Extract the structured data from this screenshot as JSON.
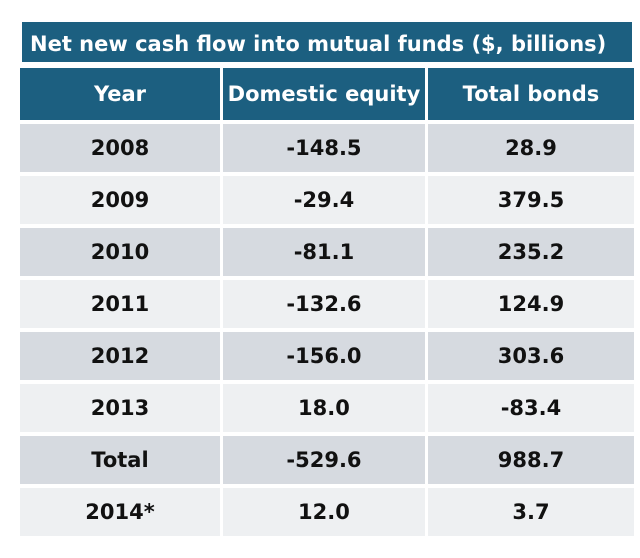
{
  "chart_data": {
    "type": "table",
    "title": "Net new cash flow into mutual funds ($, billions)",
    "columns": [
      "Year",
      "Domestic equity",
      "Total bonds"
    ],
    "rows": [
      {
        "year": "2008",
        "domestic_equity": "-148.5",
        "total_bonds": "28.9"
      },
      {
        "year": "2009",
        "domestic_equity": "-29.4",
        "total_bonds": "379.5"
      },
      {
        "year": "2010",
        "domestic_equity": "-81.1",
        "total_bonds": "235.2"
      },
      {
        "year": "2011",
        "domestic_equity": "-132.6",
        "total_bonds": "124.9"
      },
      {
        "year": "2012",
        "domestic_equity": "-156.0",
        "total_bonds": "303.6"
      },
      {
        "year": "2013",
        "domestic_equity": "18.0",
        "total_bonds": "-83.4"
      },
      {
        "year": "Total",
        "domestic_equity": "-529.6",
        "total_bonds": "988.7"
      },
      {
        "year": "2014*",
        "domestic_equity": "12.0",
        "total_bonds": "3.7"
      }
    ],
    "colors": {
      "header": "#1c5f80",
      "row_dark": "#d6dae0",
      "row_light": "#eef0f2"
    }
  }
}
